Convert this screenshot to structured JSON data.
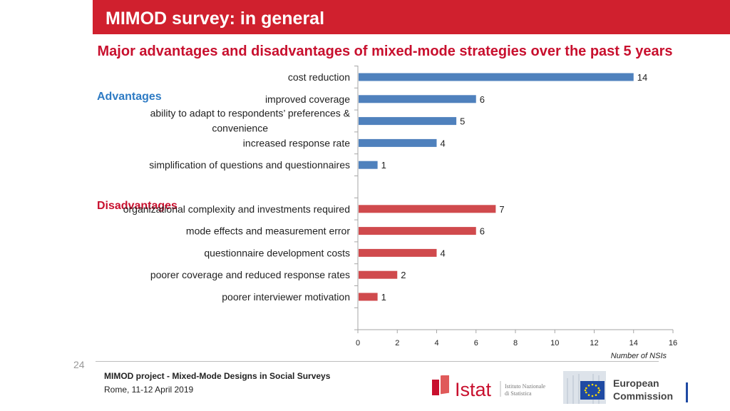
{
  "header": {
    "title": "MIMOD survey: in general"
  },
  "subtitle": "Major advantages and disadvantages of mixed-mode strategies over the past 5 years",
  "chart_data": {
    "type": "bar",
    "orientation": "horizontal",
    "groups": [
      {
        "name": "Advantages",
        "color": "#4f81bd",
        "label_color": "#2e7bc4",
        "categories": [
          [
            "cost reduction"
          ],
          [
            "improved coverage"
          ],
          [
            "ability to adapt to respondents’ preferences &",
            "convenience"
          ],
          [
            "increased response rate"
          ],
          [
            "simplification of questions and questionnaires"
          ]
        ],
        "values": [
          14,
          6,
          5,
          4,
          1
        ]
      },
      {
        "name": "Disadvantages",
        "color": "#d04a4d",
        "label_color": "#c8102e",
        "categories": [
          [
            "organizational complexity and investments required"
          ],
          [
            "mode effects and measurement error"
          ],
          [
            "questionnaire development costs"
          ],
          [
            "poorer coverage and reduced response rates"
          ],
          [
            "poorer interviewer motivation"
          ]
        ],
        "values": [
          7,
          6,
          4,
          2,
          1
        ]
      }
    ],
    "xlim": [
      0,
      16
    ],
    "xticks": [
      0,
      2,
      4,
      6,
      8,
      10,
      12,
      14,
      16
    ],
    "xlabel": "Number of NSIs",
    "grid": false,
    "data_labels": true
  },
  "footer": {
    "page_number": "24",
    "project": "MIMOD project - Mixed-Mode Designs in Social Surveys",
    "place_date": "Rome, 11-12 April 2019",
    "istat_name": "Istat",
    "istat_sub1": "Istituto Nazionale",
    "istat_sub2": "di Statistica",
    "ec_line1": "European",
    "ec_line2": "Commission"
  }
}
